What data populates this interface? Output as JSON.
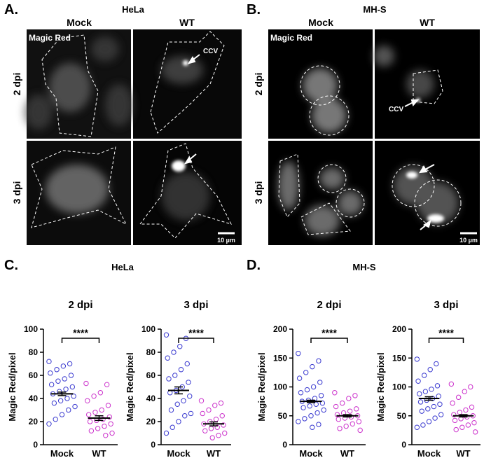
{
  "figure": {
    "panels": [
      {
        "label": "A.",
        "title": "HeLa",
        "columns": [
          "Mock",
          "WT"
        ],
        "rows": [
          "2 dpi",
          "3 dpi"
        ],
        "stain": "Magic Red",
        "annotation": "CCV",
        "scale_bar": "10 µm"
      },
      {
        "label": "B.",
        "title": "MH-S",
        "columns": [
          "Mock",
          "WT"
        ],
        "rows": [
          "2 dpi",
          "3 dpi"
        ],
        "stain": "Magic Red",
        "annotation": "CCV",
        "scale_bar": "10 µm"
      }
    ],
    "plot_panels": [
      {
        "label": "C.",
        "title": "HeLa"
      },
      {
        "label": "D.",
        "title": "MH-S"
      }
    ]
  },
  "chart_data": [
    {
      "type": "strip",
      "title": "2 dpi",
      "ylabel": "Magic Red/pixel",
      "categories": [
        "Mock",
        "WT"
      ],
      "significance": "****",
      "ylim": [
        0,
        100
      ],
      "yticks": [
        0,
        20,
        40,
        60,
        80,
        100
      ],
      "groups": [
        {
          "color": "#3b3bd0",
          "mean": 44,
          "sem": 1.5,
          "values": [
            72,
            70,
            68,
            65,
            62,
            60,
            57,
            55,
            52,
            50,
            48,
            46,
            44,
            42,
            40,
            38,
            36,
            33,
            30,
            26,
            22,
            18
          ]
        },
        {
          "color": "#cc33cc",
          "mean": 23,
          "sem": 2,
          "values": [
            53,
            52,
            45,
            42,
            38,
            34,
            30,
            28,
            26,
            24,
            22,
            21,
            20,
            18,
            16,
            14,
            12,
            10,
            8
          ]
        }
      ]
    },
    {
      "type": "strip",
      "title": "3 dpi",
      "ylabel": "Magic Red/pixel",
      "categories": [
        "Mock",
        "WT"
      ],
      "significance": "****",
      "ylim": [
        0,
        100
      ],
      "yticks": [
        0,
        20,
        40,
        60,
        80,
        100
      ],
      "groups": [
        {
          "color": "#3b3bd0",
          "mean": 47,
          "sem": 3,
          "values": [
            95,
            92,
            85,
            80,
            75,
            70,
            65,
            60,
            57,
            54,
            50,
            47,
            45,
            42,
            38,
            35,
            30,
            27,
            25,
            20,
            15,
            10
          ]
        },
        {
          "color": "#cc33cc",
          "mean": 18,
          "sem": 1.7,
          "values": [
            38,
            36,
            34,
            30,
            27,
            25,
            22,
            20,
            18,
            17,
            15,
            14,
            12,
            10,
            8,
            6
          ]
        }
      ]
    },
    {
      "type": "strip",
      "title": "2 dpi",
      "ylabel": "Magic Red/pixel",
      "categories": [
        "Mock",
        "WT"
      ],
      "significance": "****",
      "ylim": [
        0,
        200
      ],
      "yticks": [
        0,
        50,
        100,
        150,
        200
      ],
      "groups": [
        {
          "color": "#3b3bd0",
          "mean": 75,
          "sem": 2,
          "values": [
            158,
            145,
            135,
            125,
            115,
            108,
            100,
            95,
            90,
            85,
            80,
            77,
            75,
            72,
            70,
            67,
            64,
            60,
            55,
            50,
            45,
            40,
            35,
            30
          ]
        },
        {
          "color": "#cc33cc",
          "mean": 50,
          "sem": 2,
          "values": [
            90,
            85,
            80,
            72,
            66,
            62,
            58,
            55,
            52,
            50,
            48,
            46,
            44,
            40,
            36,
            32,
            28,
            25
          ]
        }
      ]
    },
    {
      "type": "strip",
      "title": "3 dpi",
      "ylabel": "Magic Red/pixel",
      "categories": [
        "Mock",
        "WT"
      ],
      "significance": "****",
      "ylim": [
        0,
        200
      ],
      "yticks": [
        0,
        50,
        100,
        150,
        200
      ],
      "groups": [
        {
          "color": "#3b3bd0",
          "mean": 80,
          "sem": 3,
          "values": [
            148,
            140,
            130,
            120,
            110,
            102,
            96,
            92,
            88,
            84,
            80,
            77,
            74,
            70,
            66,
            62,
            58,
            52,
            46,
            40,
            34,
            30
          ]
        },
        {
          "color": "#cc33cc",
          "mean": 50,
          "sem": 2,
          "values": [
            105,
            100,
            92,
            82,
            72,
            65,
            60,
            56,
            52,
            50,
            48,
            45,
            42,
            38,
            34,
            30,
            26,
            22
          ]
        }
      ]
    }
  ]
}
